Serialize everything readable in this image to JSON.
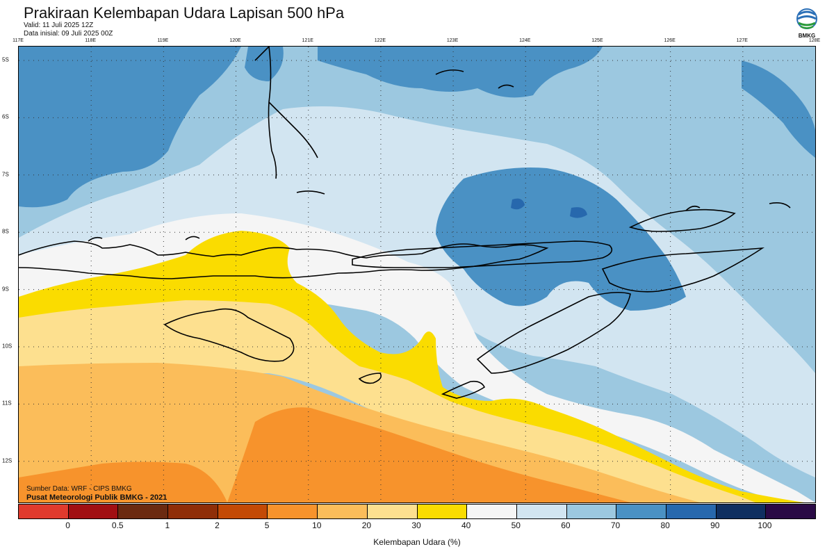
{
  "header": {
    "title": "Prakiraan Kelembapan Udara Lapisan 500 hPa",
    "valid": "Valid: 11 Juli 2025 12Z",
    "init": "Data inisial: 09 Juli 2025 00Z",
    "logo_text": "BMKG"
  },
  "map": {
    "lon_labels": [
      "117E",
      "118E",
      "119E",
      "120E",
      "121E",
      "122E",
      "123E",
      "124E",
      "125E",
      "126E",
      "127E",
      "128E"
    ],
    "lat_labels": [
      "5S",
      "6S",
      "7S",
      "8S",
      "9S",
      "10S",
      "11S",
      "12S"
    ],
    "credit_source": "Sumber Data: WRF - CIPS BMKG",
    "credit_org": "Pusat Meteorologi Publik BMKG - 2021"
  },
  "colorbar": {
    "colors": [
      "#e03a2d",
      "#a10f12",
      "#6b2a10",
      "#8f2e08",
      "#c34a06",
      "#f7932c",
      "#fbbd5a",
      "#fde08f",
      "#fadc00",
      "#f5f5f5",
      "#d2e5f1",
      "#9cc8e0",
      "#4a91c4",
      "#2768ad",
      "#0f2f60",
      "#2a0a45"
    ],
    "ticks": [
      "0",
      "0.5",
      "1",
      "2",
      "5",
      "10",
      "20",
      "30",
      "40",
      "50",
      "60",
      "70",
      "80",
      "90",
      "100"
    ],
    "label": "Kelembapan Udara (%)"
  },
  "legend_colors": {
    "dry_orange": "#f7932c",
    "light_orange": "#fbbd5a",
    "pale_orange": "#fde08f",
    "yellow": "#fadc00",
    "white": "#f5f5f5",
    "pale_blue": "#d2e5f1",
    "light_blue": "#9cc8e0",
    "blue": "#4a91c4",
    "dark_blue": "#2768ad"
  }
}
